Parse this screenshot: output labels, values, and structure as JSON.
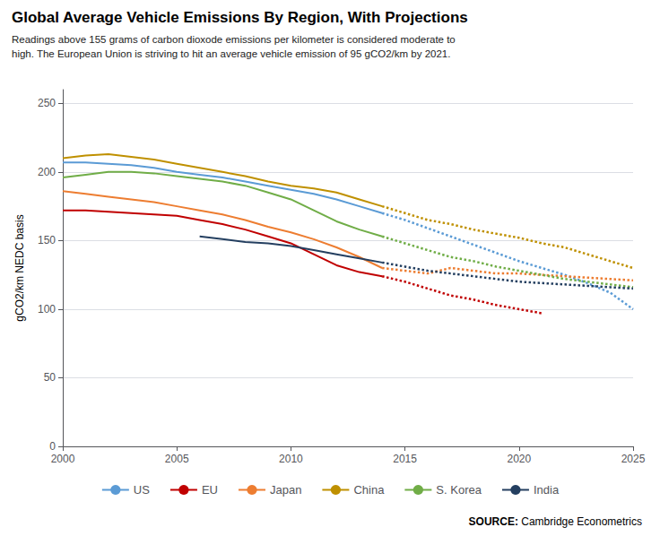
{
  "chart_data": {
    "type": "line",
    "title": "Global Average Vehicle Emissions By Region, With Projections",
    "subtitle": "Readings above 155 grams of carbon dioxode emissions per kilometer is considered moderate to\nhigh. The European Union is striving to hit an average vehicle emission of 95 gCO2/km by 2021.",
    "ylabel": "gCO2/km NEDC basis",
    "source": [
      "SOURCE:",
      " Cambridge Econometrics"
    ],
    "xlim": [
      2000,
      2025
    ],
    "xticks": [
      2000,
      2005,
      2010,
      2015,
      2020,
      2025
    ],
    "ylim": [
      0,
      260
    ],
    "yticks": [
      0,
      50,
      100,
      150,
      200,
      250
    ],
    "grid": true,
    "legend": "bottom",
    "series": [
      {
        "name": "US",
        "color": "#5B9BD5",
        "line_style": "solid",
        "x": [
          2000,
          2001,
          2002,
          2003,
          2004,
          2005,
          2006,
          2007,
          2008,
          2009,
          2010,
          2011,
          2012,
          2013,
          2014
        ],
        "values": [
          207,
          207,
          206,
          205,
          203,
          200,
          198,
          196,
          193,
          190,
          187,
          184,
          180,
          175,
          170
        ]
      },
      {
        "name": "US",
        "color": "#5B9BD5",
        "line_style": "dotted",
        "x": [
          2014,
          2015,
          2016,
          2017,
          2018,
          2019,
          2020,
          2021,
          2022,
          2023,
          2024,
          2025
        ],
        "values": [
          170,
          165,
          159,
          153,
          147,
          141,
          135,
          130,
          125,
          119,
          112,
          100
        ]
      },
      {
        "name": "EU",
        "color": "#C00000",
        "line_style": "solid",
        "x": [
          2000,
          2001,
          2002,
          2003,
          2004,
          2005,
          2006,
          2007,
          2008,
          2009,
          2010,
          2011,
          2012,
          2013,
          2014
        ],
        "values": [
          172,
          172,
          171,
          170,
          169,
          168,
          165,
          162,
          158,
          153,
          148,
          140,
          132,
          127,
          124
        ]
      },
      {
        "name": "EU",
        "color": "#C00000",
        "line_style": "dotted",
        "x": [
          2014,
          2015,
          2016,
          2017,
          2018,
          2019,
          2020,
          2021
        ],
        "values": [
          124,
          120,
          115,
          110,
          107,
          103,
          100,
          97
        ]
      },
      {
        "name": "Japan",
        "color": "#ED7D31",
        "line_style": "solid",
        "x": [
          2000,
          2001,
          2002,
          2003,
          2004,
          2005,
          2006,
          2007,
          2008,
          2009,
          2010,
          2011,
          2012,
          2013,
          2014
        ],
        "values": [
          186,
          184,
          182,
          180,
          178,
          175,
          172,
          169,
          165,
          160,
          156,
          151,
          145,
          138,
          130
        ]
      },
      {
        "name": "Japan",
        "color": "#ED7D31",
        "line_style": "dotted",
        "x": [
          2014,
          2015,
          2016,
          2017,
          2018,
          2019,
          2020,
          2021,
          2022,
          2023,
          2024,
          2025
        ],
        "values": [
          130,
          128,
          126,
          130,
          128,
          126,
          126,
          125,
          124,
          123,
          122,
          121
        ]
      },
      {
        "name": "China",
        "color": "#BF9000",
        "line_style": "solid",
        "x": [
          2000,
          2001,
          2002,
          2003,
          2004,
          2005,
          2006,
          2007,
          2008,
          2009,
          2010,
          2011,
          2012,
          2013,
          2014
        ],
        "values": [
          210,
          212,
          213,
          211,
          209,
          206,
          203,
          200,
          197,
          193,
          190,
          188,
          185,
          180,
          175
        ]
      },
      {
        "name": "China",
        "color": "#BF9000",
        "line_style": "dotted",
        "x": [
          2014,
          2015,
          2016,
          2017,
          2018,
          2019,
          2020,
          2021,
          2022,
          2023,
          2024,
          2025
        ],
        "values": [
          175,
          170,
          165,
          162,
          158,
          155,
          152,
          148,
          145,
          140,
          135,
          130
        ]
      },
      {
        "name": "S. Korea",
        "color": "#70AD47",
        "line_style": "solid",
        "x": [
          2000,
          2001,
          2002,
          2003,
          2004,
          2005,
          2006,
          2007,
          2008,
          2009,
          2010,
          2011,
          2012,
          2013,
          2014
        ],
        "values": [
          196,
          198,
          200,
          200,
          199,
          197,
          195,
          193,
          190,
          185,
          180,
          172,
          164,
          158,
          153
        ]
      },
      {
        "name": "S. Korea",
        "color": "#70AD47",
        "line_style": "dotted",
        "x": [
          2014,
          2015,
          2016,
          2017,
          2018,
          2019,
          2020,
          2021,
          2022,
          2023,
          2024,
          2025
        ],
        "values": [
          153,
          148,
          143,
          138,
          135,
          131,
          128,
          125,
          122,
          120,
          118,
          116
        ]
      },
      {
        "name": "India",
        "color": "#243F60",
        "line_style": "solid",
        "x": [
          2006,
          2007,
          2008,
          2009,
          2010,
          2011,
          2012,
          2013,
          2014
        ],
        "values": [
          153,
          151,
          149,
          148,
          146,
          143,
          140,
          137,
          134
        ]
      },
      {
        "name": "India",
        "color": "#243F60",
        "line_style": "dotted",
        "x": [
          2014,
          2015,
          2016,
          2017,
          2018,
          2019,
          2020,
          2021,
          2022,
          2023,
          2024,
          2025
        ],
        "values": [
          134,
          131,
          128,
          126,
          124,
          122,
          120,
          119,
          118,
          117,
          116,
          115
        ]
      }
    ]
  }
}
